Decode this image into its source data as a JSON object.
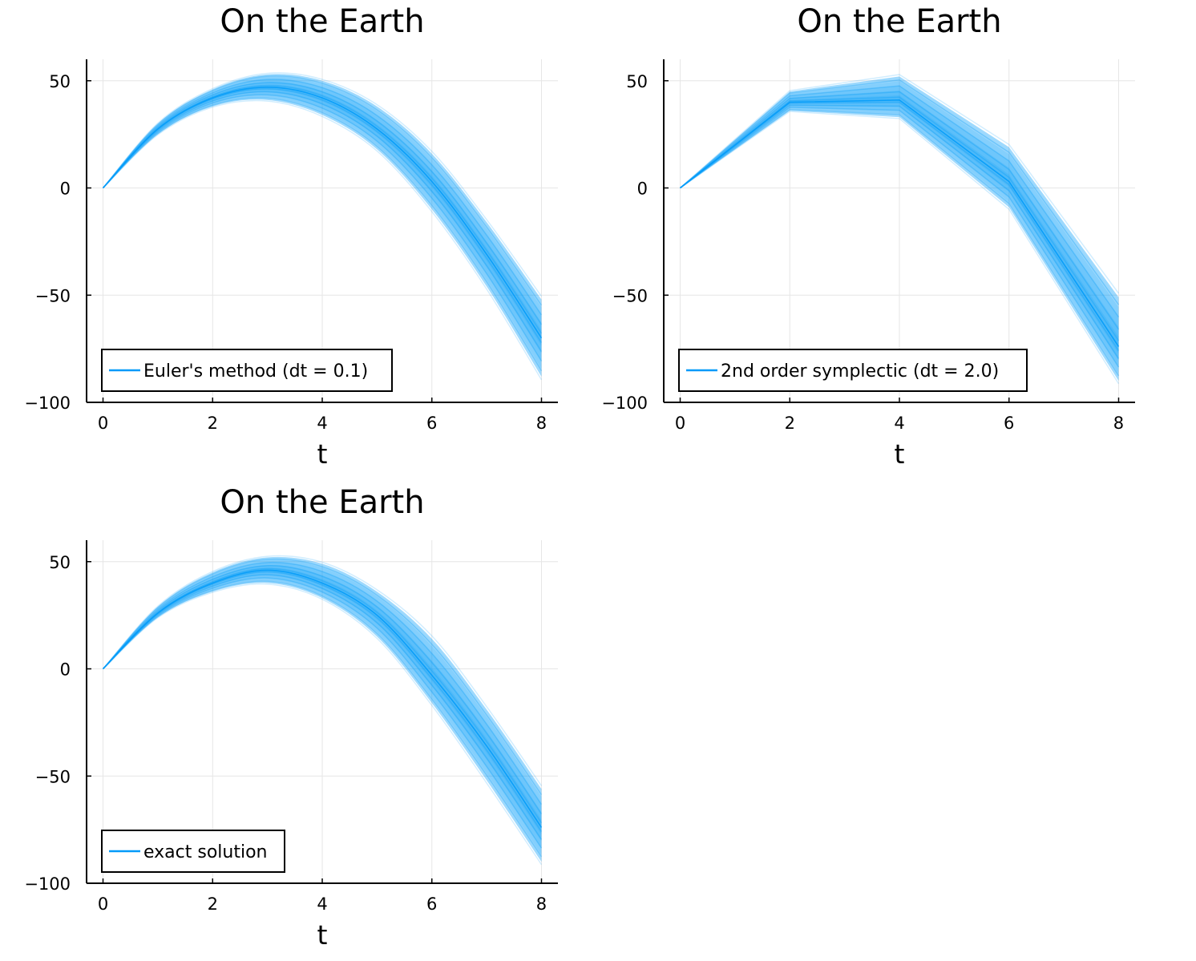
{
  "colors": {
    "series": "#009af9",
    "axis": "#000000",
    "grid": "#e6e6e6",
    "background": "#ffffff"
  },
  "chart_data": [
    {
      "type": "line",
      "title": "On the Earth",
      "xlabel": "t",
      "ylabel": "",
      "xlim": [
        -0.3,
        8.3
      ],
      "ylim": [
        -100,
        60
      ],
      "xticks": [
        0,
        2,
        4,
        6,
        8
      ],
      "yticks": [
        -100,
        -50,
        0,
        50
      ],
      "xtick_labels": [
        "0",
        "2",
        "4",
        "6",
        "8"
      ],
      "ytick_labels": [
        "−100",
        "−50",
        "0",
        "50"
      ],
      "grid": true,
      "legend": {
        "position": "bottom-left",
        "label": "Euler's method (dt = 0.1)"
      },
      "series": [
        {
          "name": "Euler's method (dt = 0.1)",
          "style": "ensemble",
          "x": [
            0,
            1,
            2,
            3,
            4,
            5,
            6,
            7,
            8
          ],
          "y_mean": [
            0,
            27.5,
            42,
            47,
            42,
            27.5,
            3,
            -31,
            -70
          ],
          "y_upper": [
            0,
            30,
            46,
            53,
            50,
            38,
            16,
            -16,
            -52
          ],
          "y_lower": [
            0,
            25,
            38,
            41,
            34,
            18,
            -10,
            -46,
            -88
          ]
        }
      ]
    },
    {
      "type": "line",
      "title": "On the Earth",
      "xlabel": "t",
      "ylabel": "",
      "xlim": [
        -0.3,
        8.3
      ],
      "ylim": [
        -100,
        60
      ],
      "xticks": [
        0,
        2,
        4,
        6,
        8
      ],
      "yticks": [
        -100,
        -50,
        0,
        50
      ],
      "xtick_labels": [
        "0",
        "2",
        "4",
        "6",
        "8"
      ],
      "ytick_labels": [
        "−100",
        "−50",
        "0",
        "50"
      ],
      "grid": true,
      "legend": {
        "position": "bottom-left",
        "label": "2nd order symplectic (dt = 2.0)"
      },
      "series": [
        {
          "name": "2nd order symplectic (dt = 2.0)",
          "style": "ensemble",
          "x": [
            0,
            2,
            4,
            6,
            8
          ],
          "y_mean": [
            0,
            40,
            41,
            3,
            -74
          ],
          "y_upper": [
            0,
            45,
            52,
            19,
            -51
          ],
          "y_lower": [
            0,
            36,
            33,
            -9,
            -90
          ]
        }
      ]
    },
    {
      "type": "line",
      "title": "On the Earth",
      "xlabel": "t",
      "ylabel": "",
      "xlim": [
        -0.3,
        8.3
      ],
      "ylim": [
        -100,
        60
      ],
      "xticks": [
        0,
        2,
        4,
        6,
        8
      ],
      "yticks": [
        -100,
        -50,
        0,
        50
      ],
      "xtick_labels": [
        "0",
        "2",
        "4",
        "6",
        "8"
      ],
      "ytick_labels": [
        "−100",
        "−50",
        "0",
        "50"
      ],
      "grid": true,
      "legend": {
        "position": "bottom-left",
        "label": "exact solution"
      },
      "series": [
        {
          "name": "exact solution",
          "style": "ensemble",
          "x": [
            0,
            1,
            2,
            3,
            4,
            5,
            6,
            7,
            8
          ],
          "y_mean": [
            0,
            26,
            40,
            46,
            40,
            25,
            -3,
            -36,
            -74
          ],
          "y_upper": [
            0,
            29,
            45,
            52,
            49,
            36,
            14,
            -19,
            -56
          ],
          "y_lower": [
            0,
            24,
            36,
            40,
            33,
            15,
            -16,
            -52,
            -90
          ]
        }
      ]
    }
  ]
}
